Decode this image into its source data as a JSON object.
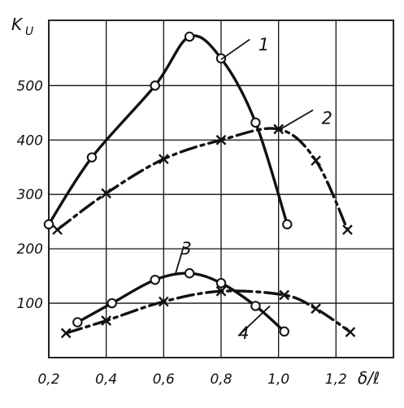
{
  "chart_data": {
    "type": "line",
    "ylabel": "K",
    "ylabel_sub": "U",
    "xlabel": "δ/ℓ",
    "xlim": [
      0.2,
      1.4
    ],
    "ylim": [
      0,
      620
    ],
    "grid": true,
    "x_ticks": [
      "0,2",
      "0,4",
      "0,6",
      "0,8",
      "1,0",
      "1,2"
    ],
    "y_ticks": [
      "100",
      "200",
      "300",
      "400",
      "500"
    ],
    "series": [
      {
        "name": "1",
        "marker": "circle",
        "line_style": "solid",
        "points": [
          [
            0.2,
            245
          ],
          [
            0.35,
            368
          ],
          [
            0.57,
            500
          ],
          [
            0.69,
            590
          ],
          [
            0.8,
            550
          ],
          [
            0.92,
            432
          ],
          [
            1.03,
            245
          ]
        ]
      },
      {
        "name": "2",
        "marker": "cross",
        "line_style": "dash-dot",
        "points": [
          [
            0.23,
            235
          ],
          [
            0.4,
            302
          ],
          [
            0.6,
            365
          ],
          [
            0.8,
            400
          ],
          [
            1.0,
            420
          ],
          [
            1.13,
            362
          ],
          [
            1.24,
            235
          ]
        ]
      },
      {
        "name": "3",
        "marker": "circle",
        "line_style": "solid",
        "points": [
          [
            0.3,
            65
          ],
          [
            0.42,
            100
          ],
          [
            0.57,
            143
          ],
          [
            0.69,
            155
          ],
          [
            0.8,
            137
          ],
          [
            0.92,
            95
          ],
          [
            1.02,
            48
          ]
        ]
      },
      {
        "name": "4",
        "marker": "cross",
        "line_style": "dash-dot",
        "points": [
          [
            0.26,
            45
          ],
          [
            0.4,
            68
          ],
          [
            0.6,
            103
          ],
          [
            0.8,
            122
          ],
          [
            1.02,
            115
          ],
          [
            1.13,
            90
          ],
          [
            1.25,
            47
          ]
        ]
      }
    ]
  }
}
